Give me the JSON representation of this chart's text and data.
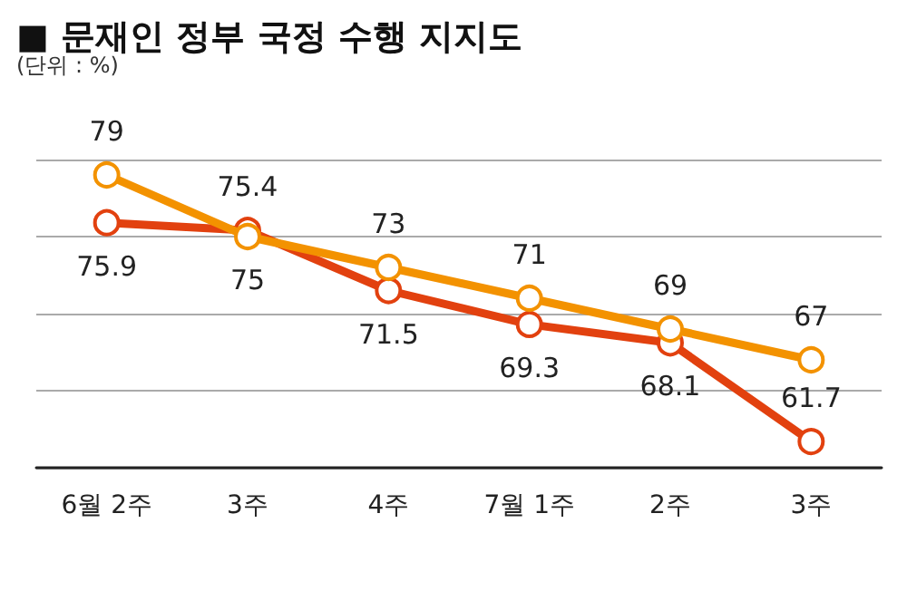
{
  "chart_data": {
    "type": "line",
    "title": "■ 문재인 정부 국정 수행 지지도",
    "subtitle": "(단위 : %)",
    "categories": [
      "6월 2주",
      "3주",
      "4주",
      "7월 1주",
      "2주",
      "3주"
    ],
    "series": [
      {
        "color": "#f39200",
        "values": [
          79,
          75,
          73,
          71,
          69,
          67
        ]
      },
      {
        "color": "#e2410f",
        "values": [
          75.9,
          75.4,
          71.5,
          69.3,
          68.1,
          61.7
        ]
      }
    ],
    "ylim": [
      60,
      80
    ],
    "yticks": [
      {
        "value": 60,
        "label": null
      },
      {
        "value": 65,
        "label": null
      },
      {
        "value": 70,
        "label": null
      },
      {
        "value": 75,
        "label": null
      },
      {
        "value": 80,
        "label": null
      }
    ],
    "grid": "y",
    "tick_labels": "x",
    "marker": "circle",
    "line_style": "solid",
    "data_labels": true
  }
}
